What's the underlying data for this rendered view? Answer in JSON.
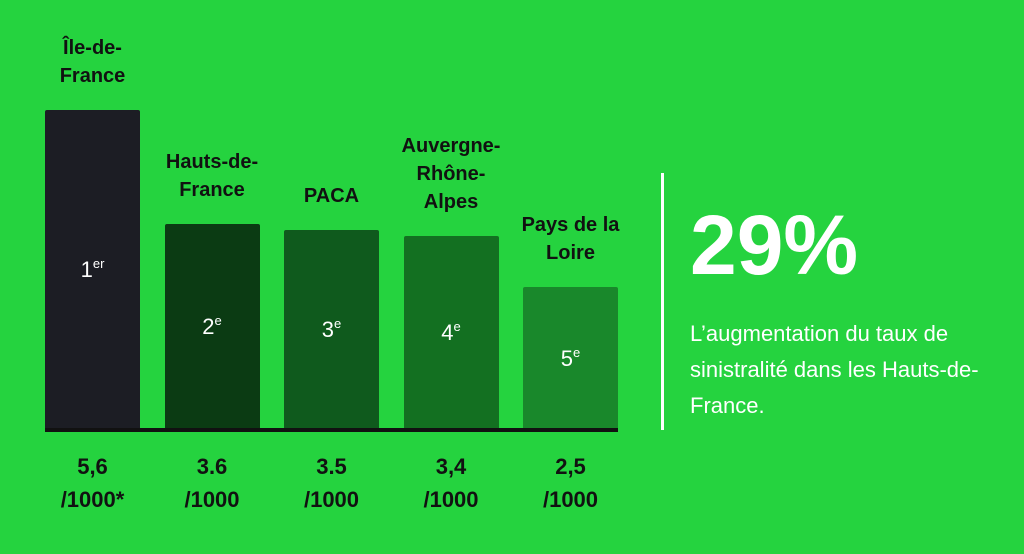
{
  "chart_data": {
    "type": "bar",
    "categories": [
      "Île-de-France",
      "Hauts-de-France",
      "PACA",
      "Auvergne-Rhône-Alpes",
      "Pays de la Loire"
    ],
    "values": [
      5.6,
      3.6,
      3.5,
      3.4,
      2.5
    ],
    "value_labels": [
      "5,6\n/1000*",
      "3.6\n/1000",
      "3.5\n/1000",
      "3,4\n/1000",
      "2,5\n/1000"
    ],
    "colors": [
      "#1c1d24",
      "#0b3b13",
      "#0f5a1d",
      "#137021",
      "#19882b"
    ],
    "ranks": [
      {
        "n": "1",
        "sup": "er"
      },
      {
        "n": "2",
        "sup": "e"
      },
      {
        "n": "3",
        "sup": "e"
      },
      {
        "n": "4",
        "sup": "e"
      },
      {
        "n": "5",
        "sup": "e"
      }
    ]
  },
  "highlight": {
    "value": "29%",
    "text": "L’augmentation du taux de sinistralité dans les Hauts-de-France."
  }
}
